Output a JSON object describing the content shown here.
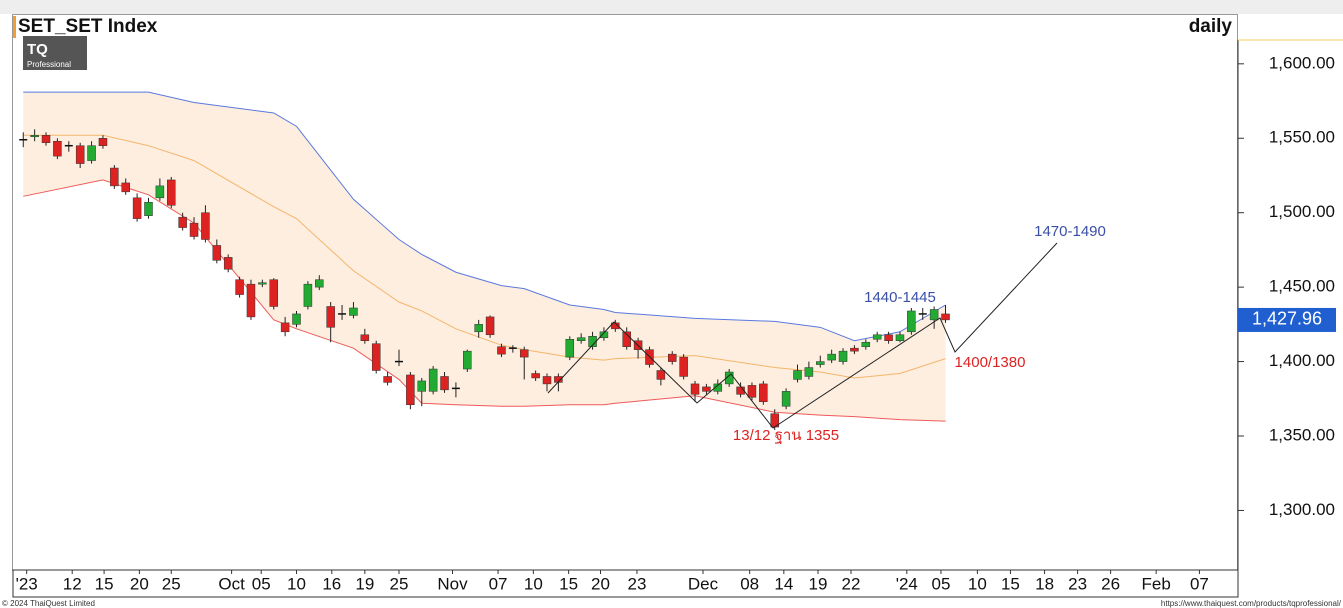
{
  "chart_data": {
    "type": "candlestick",
    "title": "SET_SET Index",
    "interval": "daily",
    "logo": {
      "mark": "TQ",
      "text": "Professional"
    },
    "footer_left": "© 2024 ThaiQuest Limited",
    "footer_right": "https://www.thaiquest.com/products/tqprofessional/",
    "up_color": "#22aa33",
    "down_color": "#dd2222",
    "doji_color": "#111111",
    "open": [
      1549,
      1551,
      1552,
      1548,
      1545,
      1545,
      1535,
      1550,
      1530,
      1520,
      1510,
      1498,
      1510,
      1522,
      1497,
      1493,
      1500,
      1478,
      1470,
      1455,
      1452,
      1452,
      1455,
      1426,
      1425,
      1437,
      1450,
      1437,
      1432,
      1431,
      1418,
      1412,
      1390,
      1400,
      1391,
      1380,
      1380,
      1390,
      1382,
      1395,
      1420,
      1430,
      1410,
      1409,
      1408,
      1392,
      1390,
      1390,
      1403,
      1414,
      1410,
      1416,
      1426,
      1420,
      1414,
      1408,
      1394,
      1405,
      1403,
      1385,
      1383,
      1380,
      1385,
      1383,
      1384,
      1385,
      1365,
      1370,
      1388,
      1390,
      1398,
      1401,
      1400,
      1409,
      1410,
      1415,
      1418,
      1414,
      1420,
      1432,
      1428,
      1432
    ],
    "high": [
      1554,
      1556,
      1554,
      1550,
      1548,
      1547,
      1548,
      1552,
      1532,
      1523,
      1513,
      1510,
      1523,
      1524,
      1500,
      1497,
      1505,
      1482,
      1472,
      1457,
      1455,
      1455,
      1456,
      1430,
      1434,
      1454,
      1458,
      1440,
      1438,
      1440,
      1422,
      1414,
      1393,
      1408,
      1393,
      1389,
      1397,
      1393,
      1386,
      1408,
      1428,
      1431,
      1412,
      1411,
      1410,
      1394,
      1392,
      1392,
      1417,
      1419,
      1420,
      1423,
      1428,
      1423,
      1416,
      1410,
      1396,
      1407,
      1405,
      1387,
      1385,
      1388,
      1395,
      1386,
      1386,
      1387,
      1368,
      1382,
      1398,
      1400,
      1404,
      1408,
      1409,
      1411,
      1415,
      1420,
      1420,
      1420,
      1436,
      1436,
      1437,
      1438
    ],
    "low": [
      1544,
      1548,
      1545,
      1536,
      1541,
      1530,
      1533,
      1543,
      1516,
      1512,
      1494,
      1496,
      1508,
      1503,
      1488,
      1482,
      1480,
      1466,
      1460,
      1443,
      1428,
      1450,
      1435,
      1417,
      1423,
      1435,
      1448,
      1413,
      1428,
      1429,
      1412,
      1392,
      1384,
      1397,
      1368,
      1370,
      1378,
      1379,
      1376,
      1393,
      1416,
      1416,
      1403,
      1406,
      1388,
      1387,
      1380,
      1380,
      1401,
      1412,
      1408,
      1414,
      1420,
      1408,
      1402,
      1396,
      1384,
      1398,
      1388,
      1373,
      1378,
      1378,
      1383,
      1376,
      1374,
      1371,
      1354,
      1368,
      1386,
      1388,
      1396,
      1399,
      1398,
      1405,
      1408,
      1413,
      1412,
      1413,
      1418,
      1428,
      1422,
      1426
    ],
    "close": [
      1549,
      1552,
      1547,
      1538,
      1545,
      1533,
      1545,
      1545,
      1518,
      1514,
      1496,
      1507,
      1518,
      1505,
      1490,
      1484,
      1482,
      1468,
      1462,
      1445,
      1430,
      1453,
      1437,
      1420,
      1432,
      1452,
      1455,
      1423,
      1432,
      1436,
      1414,
      1394,
      1386,
      1400,
      1371,
      1387,
      1395,
      1381,
      1382,
      1407,
      1425,
      1418,
      1405,
      1409,
      1403,
      1389,
      1385,
      1386,
      1415,
      1416,
      1417,
      1420,
      1422,
      1410,
      1408,
      1398,
      1388,
      1400,
      1390,
      1378,
      1380,
      1385,
      1393,
      1378,
      1376,
      1373,
      1356,
      1380,
      1394,
      1396,
      1400,
      1405,
      1407,
      1407,
      1413,
      1418,
      1414,
      1418,
      1434,
      1432,
      1435,
      1428
    ],
    "bands": {
      "x": [
        0,
        7,
        11,
        15,
        22,
        24,
        29,
        33,
        35,
        38,
        42,
        44,
        48,
        51,
        52,
        59,
        66,
        70,
        73,
        77,
        81
      ],
      "series": [
        {
          "name": "upper",
          "color": "#5a78e0",
          "values": [
            1581,
            1581,
            1581,
            1574,
            1567,
            1558,
            1509,
            1482,
            1472,
            1460,
            1451,
            1449,
            1438,
            1435,
            1433,
            1429,
            1427,
            1423,
            1414,
            1420,
            1438
          ]
        },
        {
          "name": "middle",
          "color": "#f5b56b",
          "values": [
            1552,
            1552,
            1545,
            1535,
            1504,
            1496,
            1461,
            1440,
            1434,
            1422,
            1411,
            1408,
            1403,
            1401,
            1402,
            1404,
            1396,
            1393,
            1389,
            1392,
            1402
          ]
        },
        {
          "name": "lower",
          "color": "#ee5a5a",
          "values": [
            1511,
            1522,
            1512,
            1493,
            1428,
            1422,
            1409,
            1388,
            1372,
            1371,
            1370,
            1370,
            1371,
            1371,
            1372,
            1377,
            1366,
            1364,
            1363,
            1361,
            1360
          ]
        }
      ],
      "fill": "#fdeedf"
    },
    "last_price": {
      "value": 1427.96,
      "label": "1,427.96"
    },
    "annotations": [
      {
        "text": "1470-1490",
        "color": "#3a4fa8"
      },
      {
        "text": "1440-1445",
        "color": "#3a4fa8"
      },
      {
        "text": "1400/1380",
        "color": "#dd2222"
      },
      {
        "text": "13/12 ฐาน 1355",
        "color": "#dd2222"
      }
    ],
    "xlim": [
      -0.9,
      106.6
    ],
    "xticks": [
      {
        "value": 0.3,
        "label": "'23"
      },
      {
        "value": 4.3,
        "label": "12"
      },
      {
        "value": 7.1,
        "label": "15"
      },
      {
        "value": 10.2,
        "label": "20"
      },
      {
        "value": 13,
        "label": "25"
      },
      {
        "value": 18.3,
        "label": "Oct"
      },
      {
        "value": 20.9,
        "label": "05"
      },
      {
        "value": 24,
        "label": "10"
      },
      {
        "value": 27.1,
        "label": "16"
      },
      {
        "value": 30,
        "label": "19"
      },
      {
        "value": 33,
        "label": "25"
      },
      {
        "value": 37.7,
        "label": "Nov"
      },
      {
        "value": 41.7,
        "label": "07"
      },
      {
        "value": 44.8,
        "label": "10"
      },
      {
        "value": 47.9,
        "label": "15"
      },
      {
        "value": 50.7,
        "label": "20"
      },
      {
        "value": 53.9,
        "label": "23"
      },
      {
        "value": 59.7,
        "label": "Dec"
      },
      {
        "value": 63.8,
        "label": "08"
      },
      {
        "value": 66.8,
        "label": "14"
      },
      {
        "value": 69.8,
        "label": "19"
      },
      {
        "value": 72.7,
        "label": "22"
      },
      {
        "value": 77.6,
        "label": "'24"
      },
      {
        "value": 80.6,
        "label": "05"
      },
      {
        "value": 83.8,
        "label": "10"
      },
      {
        "value": 86.7,
        "label": "15"
      },
      {
        "value": 89.7,
        "label": "18"
      },
      {
        "value": 92.6,
        "label": "23"
      },
      {
        "value": 95.5,
        "label": "26"
      },
      {
        "value": 99.5,
        "label": "Feb"
      },
      {
        "value": 103.3,
        "label": "07"
      }
    ],
    "ylim": [
      1260,
      1616
    ],
    "yticks": [
      {
        "value": 1300,
        "label": "1,300.00"
      },
      {
        "value": 1350,
        "label": "1,350.00"
      },
      {
        "value": 1400,
        "label": "1,400.00"
      },
      {
        "value": 1450,
        "label": "1,450.00"
      },
      {
        "value": 1500,
        "label": "1,500.00"
      },
      {
        "value": 1550,
        "label": "1,550.00"
      },
      {
        "value": 1600,
        "label": "1,600.00"
      }
    ]
  }
}
